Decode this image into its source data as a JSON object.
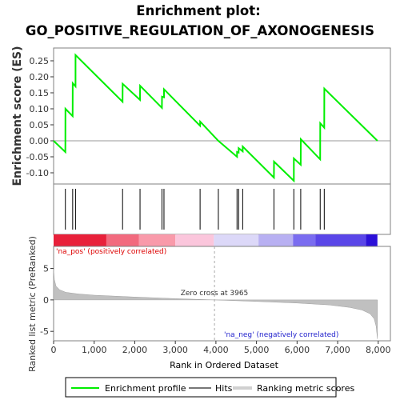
{
  "chart_data": {
    "type": "line",
    "title_line1": "Enrichment plot:",
    "title_line2": "GO_POSITIVE_REGULATION_OF_AXONOGENESIS",
    "es_panel": {
      "ylabel": "Enrichment score (ES)",
      "ylim": [
        -0.135,
        0.29
      ],
      "yticks": [
        -0.1,
        -0.05,
        0.0,
        0.05,
        0.1,
        0.15,
        0.2,
        0.25
      ],
      "ytick_labels": [
        "-0.10",
        "-0.05",
        "0.00",
        "0.05",
        "0.10",
        "0.15",
        "0.20",
        "0.25"
      ],
      "line_color": "#00ee00",
      "points": [
        [
          0,
          0.0
        ],
        [
          290,
          -0.035
        ],
        [
          291,
          0.1
        ],
        [
          470,
          0.077
        ],
        [
          471,
          0.18
        ],
        [
          540,
          0.17
        ],
        [
          541,
          0.268
        ],
        [
          1700,
          0.122
        ],
        [
          1701,
          0.178
        ],
        [
          2130,
          0.128
        ],
        [
          2131,
          0.172
        ],
        [
          2670,
          0.103
        ],
        [
          2671,
          0.138
        ],
        [
          2720,
          0.136
        ],
        [
          2721,
          0.161
        ],
        [
          3610,
          0.047
        ],
        [
          3611,
          0.06
        ],
        [
          4060,
          0.0
        ],
        [
          4520,
          -0.05
        ],
        [
          4521,
          -0.035
        ],
        [
          4560,
          -0.037
        ],
        [
          4561,
          -0.023
        ],
        [
          4660,
          -0.033
        ],
        [
          4661,
          -0.018
        ],
        [
          5430,
          -0.115
        ],
        [
          5431,
          -0.065
        ],
        [
          5920,
          -0.125
        ],
        [
          5921,
          -0.055
        ],
        [
          6090,
          -0.075
        ],
        [
          6091,
          0.005
        ],
        [
          6570,
          -0.058
        ],
        [
          6571,
          0.055
        ],
        [
          6670,
          0.041
        ],
        [
          6671,
          0.163
        ],
        [
          7980,
          0.0
        ]
      ]
    },
    "hits_panel": {
      "hit_positions": [
        290,
        470,
        540,
        1700,
        2130,
        2670,
        2720,
        3610,
        4060,
        4520,
        4560,
        4660,
        5430,
        5920,
        6090,
        6570,
        6670
      ],
      "bar_colors": [
        "#e8203a",
        "#f26a7e",
        "#f99aaa",
        "#fbc6dc",
        "#dcd8f8",
        "#b8b0f2",
        "#7a6cf0",
        "#5a46e8",
        "#2b10d8"
      ],
      "bar_breaks": [
        0,
        1300,
        2100,
        3000,
        3950,
        5050,
        5900,
        6450,
        7700,
        8000
      ]
    },
    "rank_panel": {
      "ylabel": "Ranked list metric (PreRanked)",
      "xlabel": "Rank in Ordered Dataset",
      "ylim": [
        -6.5,
        8.5
      ],
      "yticks": [
        -5,
        0,
        5
      ],
      "ytick_labels": [
        "-5",
        "0",
        "5"
      ],
      "xlim": [
        0,
        8300
      ],
      "xticks": [
        0,
        1000,
        2000,
        3000,
        4000,
        5000,
        6000,
        7000,
        8000
      ],
      "xtick_labels": [
        "0",
        "1,000",
        "2,000",
        "3,000",
        "4,000",
        "5,000",
        "6,000",
        "7,000",
        "8,000"
      ],
      "zero_cross": 3965,
      "zero_cross_label": "Zero cross at 3965",
      "pos_label": "'na_pos' (positively correlated)",
      "neg_label": "'na_neg' (negatively correlated)",
      "metric_curve": [
        [
          0,
          4.8
        ],
        [
          20,
          3.2
        ],
        [
          60,
          2.2
        ],
        [
          150,
          1.6
        ],
        [
          300,
          1.2
        ],
        [
          600,
          0.95
        ],
        [
          1000,
          0.75
        ],
        [
          2000,
          0.45
        ],
        [
          3000,
          0.2
        ],
        [
          3965,
          0.0
        ],
        [
          5000,
          -0.25
        ],
        [
          6000,
          -0.5
        ],
        [
          6800,
          -0.8
        ],
        [
          7300,
          -1.2
        ],
        [
          7600,
          -1.6
        ],
        [
          7800,
          -2.2
        ],
        [
          7900,
          -3.0
        ],
        [
          7950,
          -4.2
        ],
        [
          7980,
          -6.2
        ]
      ]
    },
    "legend": {
      "items": [
        "Enrichment profile",
        "Hits",
        "Ranking metric scores"
      ]
    }
  }
}
